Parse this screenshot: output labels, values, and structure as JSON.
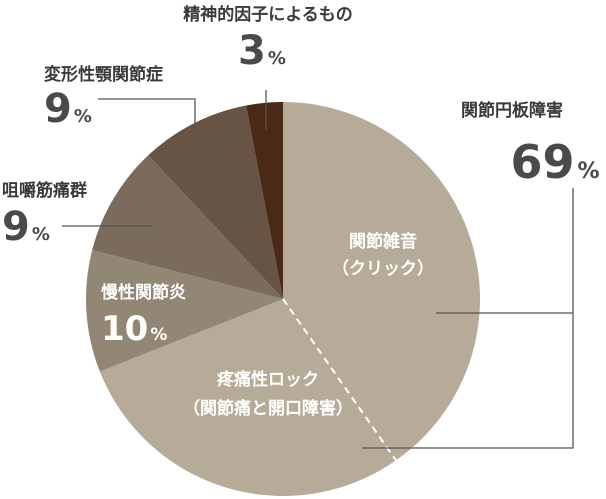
{
  "chart_data": {
    "type": "pie",
    "slices": [
      {
        "label": "関節円板障害",
        "value": 69,
        "color": "#b6ab98"
      },
      {
        "label": "慢性関節炎",
        "value": 10,
        "color": "#928674"
      },
      {
        "label": "咀嚼筋痛群",
        "value": 9,
        "color": "#7b6b5c"
      },
      {
        "label": "変形性顎関節症",
        "value": 9,
        "color": "#675444"
      },
      {
        "label": "精神的因子によるもの",
        "value": 3,
        "color": "#4a2a17"
      }
    ],
    "sub_labels": {
      "click": [
        "関節雑音",
        "（クリック）"
      ],
      "lock": [
        "疼痛性ロック",
        "（関節痛と開口障害）"
      ]
    },
    "percent_sign": "%"
  }
}
